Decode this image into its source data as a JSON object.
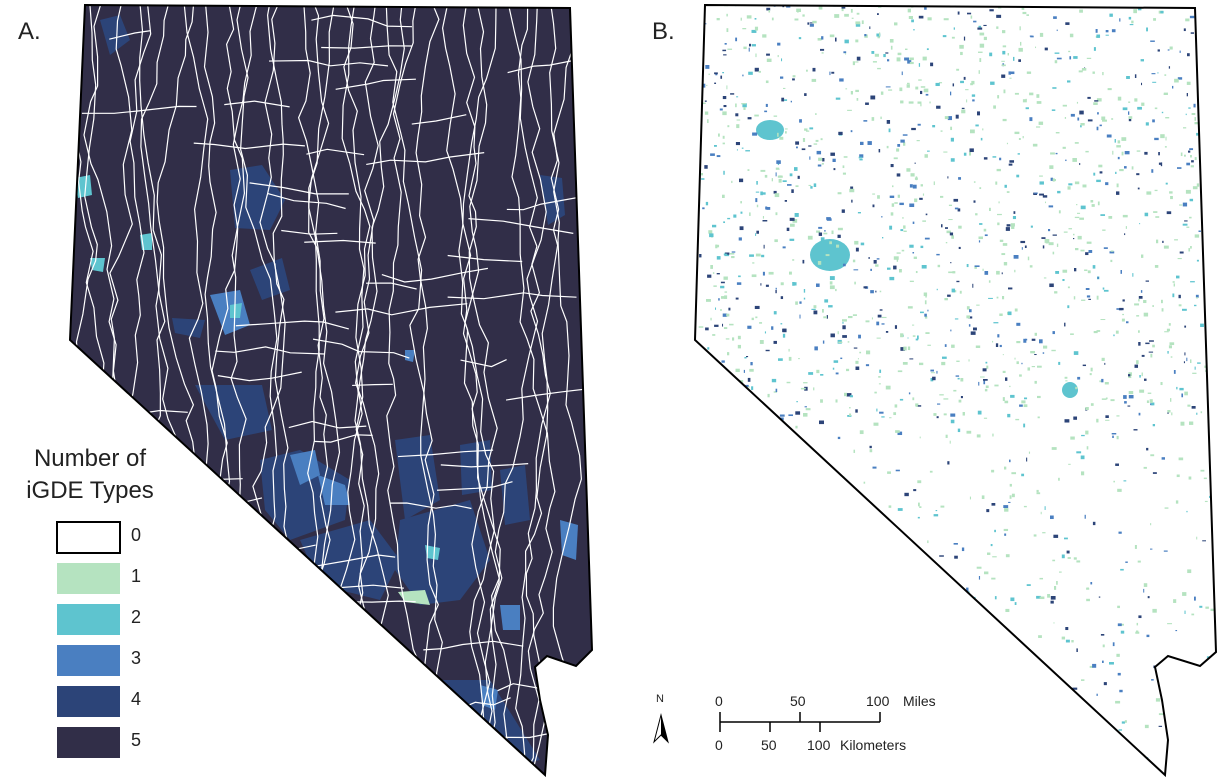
{
  "panels": [
    {
      "label": "A."
    },
    {
      "label": "B."
    }
  ],
  "legend": {
    "title": "Number of iGDE Types",
    "items": [
      {
        "label": "0",
        "color": "#ffffff"
      },
      {
        "label": "1",
        "color": "#b5e3c0"
      },
      {
        "label": "2",
        "color": "#5ec4cf"
      },
      {
        "label": "3",
        "color": "#4a7fc1"
      },
      {
        "label": "4",
        "color": "#2c4478"
      },
      {
        "label": "5",
        "color": "#312e48"
      }
    ]
  },
  "north_arrow": {
    "label": "N"
  },
  "scale_bar": {
    "miles": {
      "ticks": [
        "0",
        "50",
        "100"
      ],
      "unit": "Miles"
    },
    "kilometers": {
      "ticks": [
        "0",
        "50",
        "100"
      ],
      "unit": "Kilometers"
    }
  }
}
